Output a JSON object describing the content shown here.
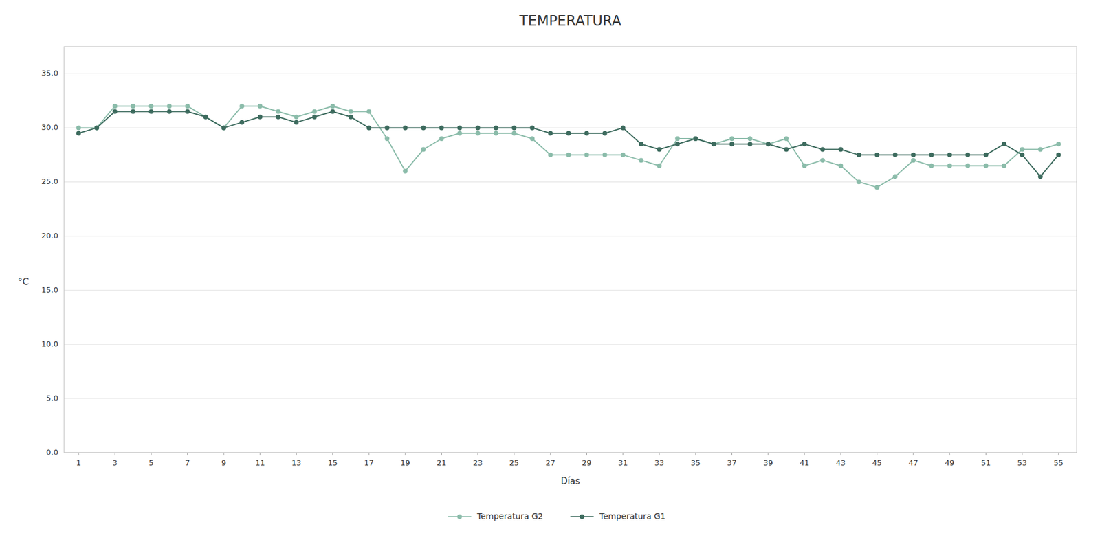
{
  "chart_data": {
    "type": "line",
    "title": "TEMPERATURA",
    "x_label": "Días",
    "y_label": "°C",
    "x": [
      1,
      2,
      3,
      4,
      5,
      6,
      7,
      8,
      9,
      10,
      11,
      12,
      13,
      14,
      15,
      16,
      17,
      18,
      19,
      20,
      21,
      22,
      23,
      24,
      25,
      26,
      27,
      28,
      29,
      30,
      31,
      32,
      33,
      34,
      35,
      36,
      37,
      38,
      39,
      40,
      41,
      42,
      43,
      44,
      45,
      46,
      47,
      48,
      49,
      50,
      51,
      52,
      53,
      54,
      55
    ],
    "xlim": [
      0.2,
      56
    ],
    "xticks": [
      1,
      3,
      5,
      7,
      9,
      11,
      13,
      15,
      17,
      19,
      21,
      23,
      25,
      27,
      29,
      31,
      33,
      35,
      37,
      39,
      41,
      43,
      45,
      47,
      49,
      51,
      53,
      55
    ],
    "ylim": [
      0.0,
      37.5
    ],
    "yticks": [
      {
        "value": 0.0,
        "label": "0.0"
      },
      {
        "value": 5.0,
        "label": "5.0"
      },
      {
        "value": 10.0,
        "label": "10.0"
      },
      {
        "value": 15.0,
        "label": "15.0"
      },
      {
        "value": 20.0,
        "label": "20.0"
      },
      {
        "value": 25.0,
        "label": "25.0"
      },
      {
        "value": 30.0,
        "label": "30.0"
      },
      {
        "value": 35.0,
        "label": "35.0"
      }
    ],
    "grid": "y",
    "legend": "bottom",
    "marker": "circle",
    "series": [
      {
        "name": "Temperatura G2",
        "color": "#8bbcaa",
        "values": [
          30.0,
          30.0,
          32.0,
          32.0,
          32.0,
          32.0,
          32.0,
          31.0,
          30.0,
          32.0,
          32.0,
          31.5,
          31.0,
          31.5,
          32.0,
          31.5,
          31.5,
          29.0,
          26.0,
          28.0,
          29.0,
          29.5,
          29.5,
          29.5,
          29.5,
          29.0,
          27.5,
          27.5,
          27.5,
          27.5,
          27.5,
          27.0,
          26.5,
          29.0,
          29.0,
          28.5,
          29.0,
          29.0,
          28.5,
          29.0,
          26.5,
          27.0,
          26.5,
          25.0,
          24.5,
          25.5,
          27.0,
          26.5,
          26.5,
          26.5,
          26.5,
          26.5,
          28.0,
          28.0,
          28.5
        ]
      },
      {
        "name": "Temperatura G1",
        "color": "#3d6b5e",
        "values": [
          29.5,
          30.0,
          31.5,
          31.5,
          31.5,
          31.5,
          31.5,
          31.0,
          30.0,
          30.5,
          31.0,
          31.0,
          30.5,
          31.0,
          31.5,
          31.0,
          30.0,
          30.0,
          30.0,
          30.0,
          30.0,
          30.0,
          30.0,
          30.0,
          30.0,
          30.0,
          29.5,
          29.5,
          29.5,
          29.5,
          30.0,
          28.5,
          28.0,
          28.5,
          29.0,
          28.5,
          28.5,
          28.5,
          28.5,
          28.0,
          28.5,
          28.0,
          28.0,
          27.5,
          27.5,
          27.5,
          27.5,
          27.5,
          27.5,
          27.5,
          27.5,
          28.5,
          27.5,
          25.5,
          27.5
        ]
      }
    ]
  }
}
